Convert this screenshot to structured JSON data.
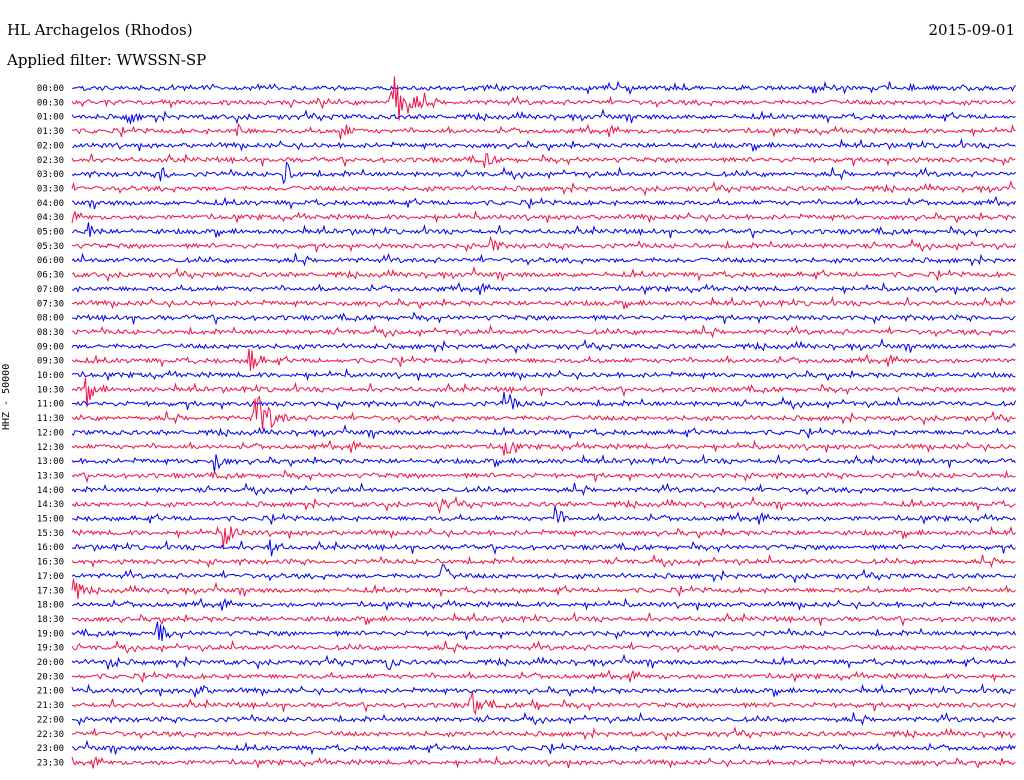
{
  "header": {
    "station": "HL Archagelos (Rhodos)",
    "date": "2015-09-01",
    "filter": "Applied filter: WWSSN-SP"
  },
  "chart_data": {
    "type": "line",
    "title": "HL Archagelos (Rhodos)",
    "ylabel": "HHZ - 50000",
    "x_range": [
      0,
      30
    ],
    "trace_rows": [
      "00:00",
      "00:30",
      "01:00",
      "01:30",
      "02:00",
      "02:30",
      "03:00",
      "03:30",
      "04:00",
      "04:30",
      "05:00",
      "05:30",
      "06:00",
      "06:30",
      "07:00",
      "07:30",
      "08:00",
      "08:30",
      "09:00",
      "09:30",
      "10:00",
      "10:30",
      "11:00",
      "11:30",
      "12:00",
      "12:30",
      "13:00",
      "13:30",
      "14:00",
      "14:30",
      "15:00",
      "15:30",
      "16:00",
      "16:30",
      "17:00",
      "17:30",
      "18:00",
      "18:30",
      "19:00",
      "19:30",
      "20:00",
      "20:30",
      "21:00",
      "21:30",
      "22:00",
      "22:30",
      "23:00",
      "23:30"
    ],
    "series_colors": [
      "#0000ee",
      "#ee1144"
    ],
    "events": [
      {
        "row": 1,
        "minute": 10.2,
        "amplitude": 1.0
      },
      {
        "row": 2,
        "minute": 1.8,
        "amplitude": 0.35
      },
      {
        "row": 3,
        "minute": 5.3,
        "amplitude": 0.3
      },
      {
        "row": 3,
        "minute": 8.6,
        "amplitude": 0.35
      },
      {
        "row": 5,
        "minute": 13.2,
        "amplitude": 0.3
      },
      {
        "row": 6,
        "minute": 2.9,
        "amplitude": 0.3
      },
      {
        "row": 6,
        "minute": 6.8,
        "amplitude": 0.4
      },
      {
        "row": 10,
        "minute": 0.6,
        "amplitude": 0.3
      },
      {
        "row": 11,
        "minute": 13.3,
        "amplitude": 0.35
      },
      {
        "row": 19,
        "minute": 5.7,
        "amplitude": 0.45
      },
      {
        "row": 21,
        "minute": 0.5,
        "amplitude": 0.5
      },
      {
        "row": 22,
        "minute": 13.8,
        "amplitude": 0.45
      },
      {
        "row": 23,
        "minute": 5.8,
        "amplitude": 0.95
      },
      {
        "row": 25,
        "minute": 13.8,
        "amplitude": 0.4
      },
      {
        "row": 26,
        "minute": 4.6,
        "amplitude": 0.35
      },
      {
        "row": 29,
        "minute": 11.7,
        "amplitude": 0.4
      },
      {
        "row": 30,
        "minute": 15.4,
        "amplitude": 0.4
      },
      {
        "row": 31,
        "minute": 4.9,
        "amplitude": 0.5
      },
      {
        "row": 32,
        "minute": 6.3,
        "amplitude": 0.4
      },
      {
        "row": 34,
        "minute": 11.8,
        "amplitude": 0.4
      },
      {
        "row": 35,
        "minute": 0.1,
        "amplitude": 0.4
      },
      {
        "row": 38,
        "minute": 2.8,
        "amplitude": 0.35
      },
      {
        "row": 40,
        "minute": 1.2,
        "amplitude": 0.35
      },
      {
        "row": 40,
        "minute": 10.1,
        "amplitude": 0.3
      },
      {
        "row": 42,
        "minute": 4.0,
        "amplitude": 0.35
      },
      {
        "row": 43,
        "minute": 12.7,
        "amplitude": 0.55
      },
      {
        "row": 43,
        "minute": 14.7,
        "amplitude": 0.25
      }
    ]
  }
}
